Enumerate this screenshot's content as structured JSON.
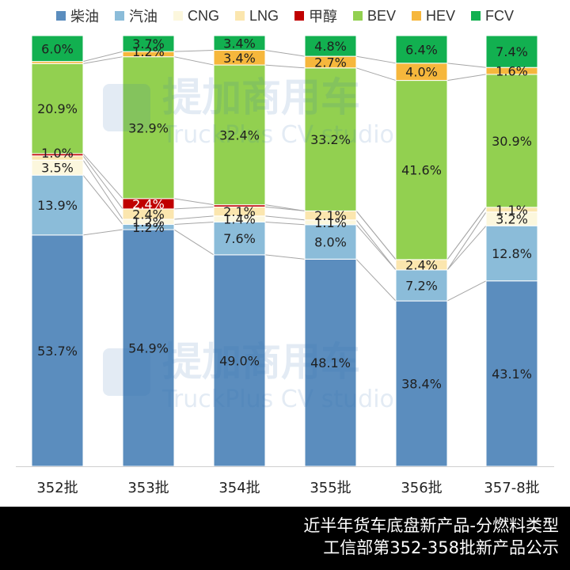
{
  "chart_data": {
    "type": "bar",
    "stacked": true,
    "normalized": true,
    "categories": [
      "352批",
      "353批",
      "354批",
      "355批",
      "356批",
      "357-8批"
    ],
    "series": [
      {
        "name": "柴油",
        "color": "#5B8DBE",
        "values": [
          53.7,
          54.9,
          49.0,
          48.1,
          38.4,
          43.1
        ],
        "labels": [
          "53.7%",
          "54.9%",
          "49.0%",
          "48.1%",
          "38.4%",
          "43.1%"
        ]
      },
      {
        "name": "汽油",
        "color": "#8BBCD9",
        "values": [
          13.9,
          1.2,
          7.6,
          8.0,
          7.2,
          12.8
        ],
        "labels": [
          "13.9%",
          "1.2%",
          "7.6%",
          "8.0%",
          "7.2%",
          "12.8%"
        ]
      },
      {
        "name": "CNG",
        "color": "#FCF7DD",
        "values": [
          3.5,
          1.2,
          1.4,
          1.1,
          0.0,
          3.2
        ],
        "labels": [
          "3.5%",
          "1.2%",
          "1.4%",
          "1.1%",
          "",
          "3.2%"
        ]
      },
      {
        "name": "LNG",
        "color": "#FBE6AE",
        "values": [
          1.0,
          2.4,
          2.1,
          2.1,
          2.4,
          1.1
        ],
        "labels": [
          "1.0%",
          "2.4%",
          "2.1%",
          "2.1%",
          "2.4%",
          "1.1%"
        ]
      },
      {
        "name": "甲醇",
        "color": "#C00000",
        "values": [
          0.5,
          2.4,
          0.5,
          0.0,
          0.0,
          0.0
        ],
        "labels": [
          "",
          "2.4%",
          "",
          "",
          "",
          ""
        ]
      },
      {
        "name": "BEV",
        "color": "#92D050",
        "values": [
          20.9,
          32.9,
          32.4,
          33.2,
          41.6,
          30.9
        ],
        "labels": [
          "20.9%",
          "32.9%",
          "32.4%",
          "33.2%",
          "41.6%",
          "30.9%"
        ]
      },
      {
        "name": "HEV",
        "color": "#F6B73C",
        "values": [
          0.5,
          1.2,
          3.4,
          2.7,
          4.0,
          1.6
        ],
        "labels": [
          "",
          "1.2%",
          "3.4%",
          "2.7%",
          "4.0%",
          "1.6%"
        ]
      },
      {
        "name": "FCV",
        "color": "#12B050",
        "values": [
          6.0,
          3.7,
          3.4,
          4.8,
          6.4,
          7.4
        ],
        "labels": [
          "6.0%",
          "3.7%",
          "3.4%",
          "4.8%",
          "6.4%",
          "7.4%"
        ]
      }
    ],
    "watermark": {
      "brand": "提加商用车",
      "sub": "TruckPlus CV studio"
    }
  },
  "footer": {
    "line1": "近半年货车底盘新产品-分燃料类型",
    "line2": "工信部第352-358批新产品公示"
  }
}
